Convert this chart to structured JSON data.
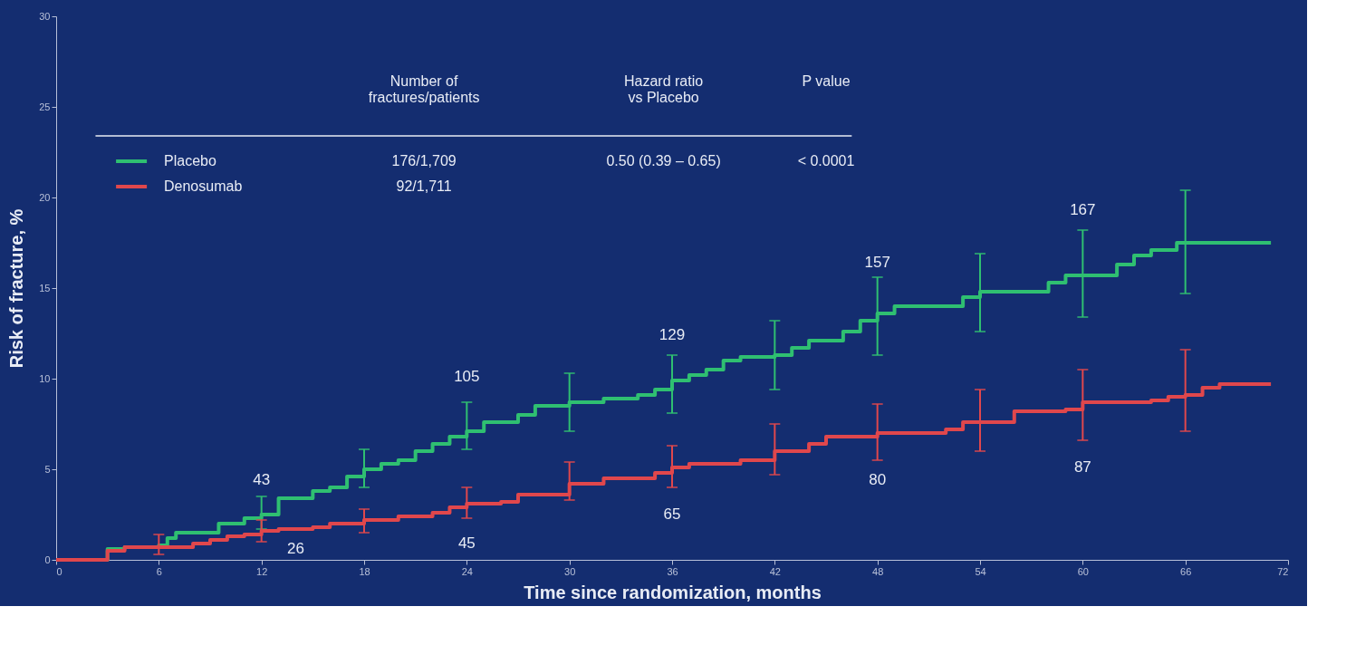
{
  "chart_data": {
    "type": "step",
    "xlabel": "Time since randomization, months",
    "ylabel": "Risk of fracture, %",
    "xlim": [
      0,
      72
    ],
    "xticks": [
      0,
      6,
      12,
      18,
      24,
      30,
      36,
      42,
      48,
      54,
      60,
      66,
      72
    ],
    "ylim": [
      0,
      30
    ],
    "yticks": [
      0,
      5,
      10,
      15,
      20,
      25,
      30
    ],
    "grid": false,
    "legend": "top left",
    "marker": "none",
    "line_style": "solid",
    "series": [
      {
        "name": "Placebo",
        "color": "#2fbf71",
        "x": [
          0,
          3,
          4,
          6,
          6.5,
          7,
          9,
          9.5,
          11,
          12,
          13,
          15,
          16,
          17,
          18,
          19,
          20,
          21,
          22,
          23,
          24,
          25,
          26,
          27,
          28,
          30,
          32,
          34,
          35,
          36,
          37,
          38,
          39,
          40,
          42,
          43,
          44,
          46,
          47,
          48,
          49,
          52,
          53,
          54,
          56,
          58,
          59,
          60,
          61,
          62,
          63,
          64,
          65,
          65.5,
          66,
          71
        ],
        "values": [
          0,
          0.6,
          0.7,
          0.8,
          1.2,
          1.5,
          1.5,
          2.0,
          2.3,
          2.5,
          3.4,
          3.8,
          4.0,
          4.6,
          5.0,
          5.3,
          5.5,
          6.0,
          6.4,
          6.8,
          7.1,
          7.6,
          7.6,
          8.0,
          8.5,
          8.7,
          8.9,
          9.1,
          9.4,
          9.9,
          10.2,
          10.5,
          11.0,
          11.2,
          11.3,
          11.7,
          12.1,
          12.6,
          13.2,
          13.6,
          14.0,
          14.0,
          14.5,
          14.8,
          14.8,
          15.3,
          15.7,
          15.7,
          15.7,
          16.3,
          16.8,
          17.1,
          17.1,
          17.5,
          17.5,
          17.5
        ],
        "errors": [
          null,
          null,
          null,
          null,
          null,
          null,
          null,
          null,
          null,
          [
            1.7,
            3.5
          ],
          null,
          null,
          null,
          null,
          [
            4.0,
            6.1
          ],
          null,
          null,
          null,
          null,
          null,
          [
            6.1,
            8.7
          ],
          null,
          null,
          null,
          null,
          [
            7.1,
            10.3
          ],
          null,
          null,
          null,
          [
            8.1,
            11.3
          ],
          null,
          null,
          null,
          null,
          [
            9.4,
            13.2
          ],
          null,
          null,
          null,
          null,
          [
            11.3,
            15.6
          ],
          null,
          null,
          null,
          [
            12.6,
            16.9
          ],
          null,
          null,
          null,
          [
            13.4,
            18.2
          ],
          null,
          null,
          null,
          null,
          null,
          null,
          [
            14.7,
            20.4
          ],
          null
        ]
      },
      {
        "name": "Denosumab",
        "color": "#e0474c",
        "x": [
          0,
          3,
          4,
          6,
          8,
          9,
          10,
          11,
          12,
          13,
          15,
          16,
          18,
          20,
          22,
          23,
          24,
          26,
          27,
          30,
          32,
          35,
          36,
          37,
          40,
          42,
          44,
          45,
          48,
          52,
          53,
          54,
          55,
          56,
          59,
          60,
          64,
          65,
          66,
          67,
          68,
          71
        ],
        "values": [
          0,
          0.5,
          0.7,
          0.7,
          0.9,
          1.1,
          1.3,
          1.4,
          1.6,
          1.7,
          1.8,
          2.0,
          2.2,
          2.4,
          2.6,
          2.9,
          3.1,
          3.2,
          3.6,
          4.2,
          4.5,
          4.8,
          5.1,
          5.3,
          5.5,
          6.0,
          6.4,
          6.8,
          7.0,
          7.2,
          7.6,
          7.6,
          7.6,
          8.2,
          8.3,
          8.7,
          8.8,
          9.0,
          9.1,
          9.5,
          9.7,
          9.7
        ],
        "errors": [
          null,
          null,
          null,
          [
            0.3,
            1.4
          ],
          null,
          null,
          null,
          null,
          [
            1.0,
            2.2
          ],
          null,
          null,
          null,
          [
            1.5,
            2.8
          ],
          null,
          null,
          null,
          [
            2.3,
            4.0
          ],
          null,
          null,
          [
            3.3,
            5.4
          ],
          null,
          null,
          [
            4.0,
            6.3
          ],
          null,
          null,
          [
            4.7,
            7.5
          ],
          null,
          null,
          [
            5.5,
            8.6
          ],
          null,
          null,
          [
            6.0,
            9.4
          ],
          null,
          null,
          null,
          [
            6.6,
            10.5
          ],
          null,
          null,
          [
            7.1,
            11.6
          ],
          null,
          null,
          null
        ]
      }
    ],
    "annotations": [
      "Number of\nfractures/patients",
      "Hazard ratio\nvs Placebo",
      "P value",
      "176/1,709",
      "0.50 (0.39 – 0.65)",
      "< 0.0001",
      "92/1,711",
      "43",
      "26",
      "105",
      "45",
      "129",
      "65",
      "157",
      "80",
      "167",
      "87"
    ]
  }
}
